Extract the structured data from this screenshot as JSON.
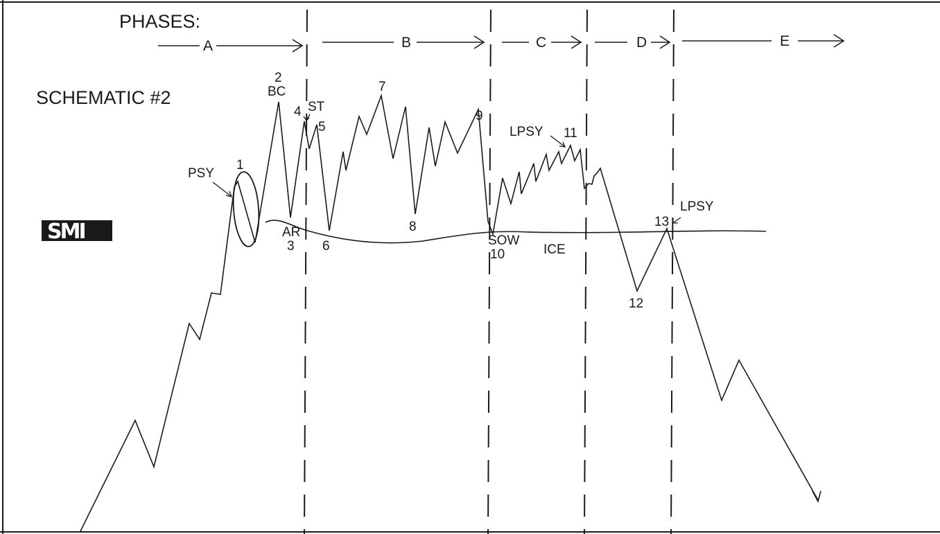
{
  "header": {
    "phases_label": "PHASES:"
  },
  "schematic_title": "SCHEMATIC #2",
  "logo_text": "SMI",
  "phases": [
    "A",
    "B",
    "C",
    "D",
    "E"
  ],
  "event_labels": {
    "psy": "PSY",
    "n1": "1",
    "n2": "2",
    "bc": "BC",
    "n4": "4",
    "st": "ST",
    "n5": "5",
    "ar": "AR",
    "n3": "3",
    "n6": "6",
    "n7": "7",
    "n8": "8",
    "n9": "9",
    "sow": "SOW",
    "n10": "10",
    "lpsy1": "LPSY",
    "n11": "11",
    "ice": "ICE",
    "n12": "12",
    "n13": "13",
    "lpsy2": "LPSY"
  },
  "colors": {
    "ink": "#1a1a1a",
    "paper": "#ffffff",
    "logo_bg": "#1a1a1a"
  }
}
